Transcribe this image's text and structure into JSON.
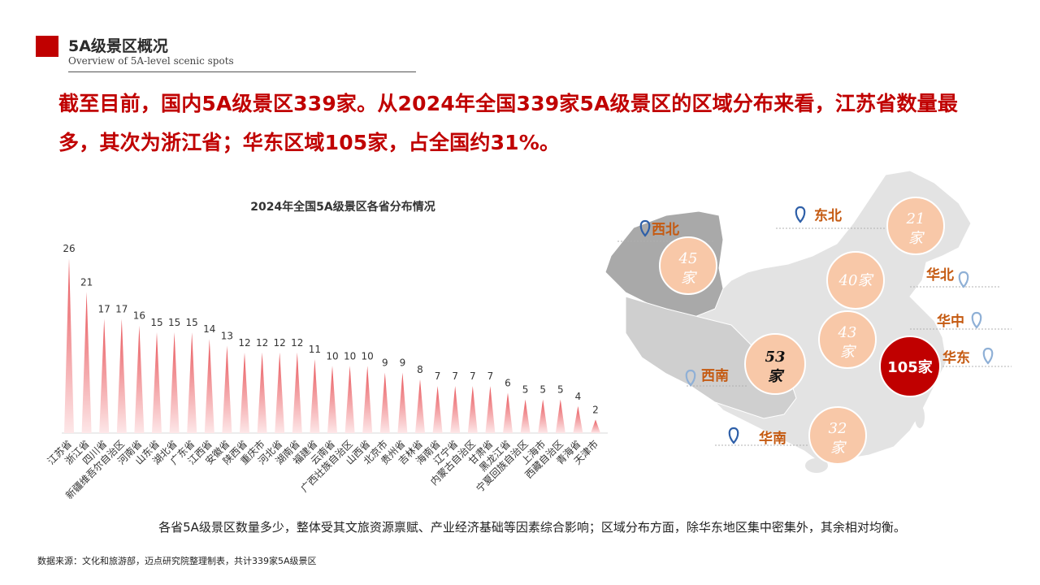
{
  "header": {
    "title": "5A级景区概况",
    "subtitle": "Overview of 5A-level scenic spots"
  },
  "headline": "截至目前，国内5A级景区339家。从2024年全国339家5A级景区的区域分布来看，江苏省数量最多，其次为浙江省；华东区域105家，占全国约31%。",
  "chart_data": {
    "type": "bar",
    "title": "2024年全国5A级景区各省分布情况",
    "categories": [
      "江苏省",
      "浙江省",
      "四川省",
      "新疆维吾尔自治区",
      "河南省",
      "山东省",
      "湖北省",
      "广东省",
      "江西省",
      "安徽省",
      "陕西省",
      "重庆市",
      "河北省",
      "湖南省",
      "福建省",
      "云南省",
      "广西壮族自治区",
      "山西省",
      "北京市",
      "贵州省",
      "吉林省",
      "海南省",
      "辽宁省",
      "内蒙古自治区",
      "甘肃省",
      "黑龙江省",
      "宁夏回族自治区",
      "上海市",
      "西藏自治区",
      "青海省",
      "天津市"
    ],
    "values": [
      26,
      21,
      17,
      17,
      16,
      15,
      15,
      15,
      14,
      13,
      12,
      12,
      12,
      12,
      11,
      10,
      10,
      10,
      9,
      9,
      8,
      7,
      7,
      7,
      7,
      6,
      5,
      5,
      5,
      4,
      2
    ],
    "colors": {
      "bar_top": "#e8555a",
      "bar_bottom": "#fde7e8"
    }
  },
  "map": {
    "regions": [
      {
        "name": "西北",
        "count": "45",
        "unit": "家"
      },
      {
        "name": "东北",
        "count": "21",
        "unit": "家"
      },
      {
        "name": "华北",
        "count": "40",
        "unit": "家"
      },
      {
        "name": "华中",
        "count": "43",
        "unit": "家"
      },
      {
        "name": "华东",
        "count": "105",
        "unit": "家"
      },
      {
        "name": "西南",
        "count": "53",
        "unit": "家"
      },
      {
        "name": "华南",
        "count": "32",
        "unit": "家"
      }
    ],
    "colors": {
      "bubble": "#f8c8a8",
      "highlight_bubble": "#c00000",
      "label": "#c55a11",
      "pin": "#2e5fa8"
    }
  },
  "footnote": "各省5A级景区数量多少，整体受其文旅资源禀赋、产业经济基础等因素综合影响；区域分布方面，除华东地区集中密集外，其余相对均衡。",
  "source": "数据来源：文化和旅游部，迈点研究院整理制表，共计339家5A级景区"
}
